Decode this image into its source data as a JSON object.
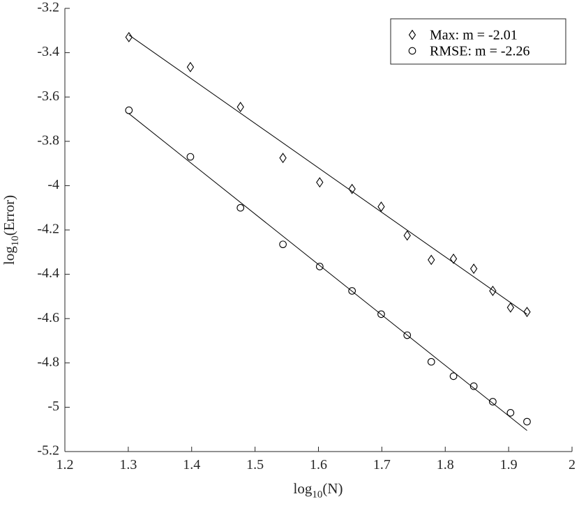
{
  "chart_data": {
    "type": "scatter",
    "xlim": [
      1.2,
      2.0
    ],
    "ylim": [
      -5.2,
      -3.2
    ],
    "x_ticks": [
      1.2,
      1.3,
      1.4,
      1.5,
      1.6,
      1.7,
      1.8,
      1.9,
      2.0
    ],
    "x_tick_labels": [
      "1.2",
      "1.3",
      "1.4",
      "1.5",
      "1.6",
      "1.7",
      "1.8",
      "1.9",
      "2"
    ],
    "y_ticks": [
      -3.2,
      -3.4,
      -3.6,
      -3.8,
      -4.0,
      -4.2,
      -4.4,
      -4.6,
      -4.8,
      -5.0,
      -5.2
    ],
    "y_tick_labels": [
      "-3.2",
      "-3.4",
      "-3.6",
      "-3.8",
      "-4",
      "-4.2",
      "-4.4",
      "-4.6",
      "-4.8",
      "-5",
      "-5.2"
    ],
    "xlabel": {
      "base": "log",
      "sub": "10",
      "rest": "(N)"
    },
    "ylabel": {
      "base": "log",
      "sub": "10",
      "rest": "(Error)"
    },
    "grid": false,
    "legend_position": "top-right",
    "series": [
      {
        "name": "Max: m = -2.01",
        "marker": "diamond",
        "color": "#000000",
        "x": [
          1.301,
          1.398,
          1.477,
          1.544,
          1.602,
          1.653,
          1.699,
          1.74,
          1.778,
          1.813,
          1.845,
          1.875,
          1.903,
          1.929
        ],
        "y": [
          -3.33,
          -3.465,
          -3.645,
          -3.875,
          -3.985,
          -4.015,
          -4.095,
          -4.225,
          -4.335,
          -4.33,
          -4.375,
          -4.475,
          -4.55,
          -4.57
        ],
        "fit": {
          "x": [
            1.301,
            1.929
          ],
          "y": [
            -3.32,
            -4.58
          ]
        }
      },
      {
        "name": "RMSE: m = -2.26",
        "marker": "circle",
        "color": "#000000",
        "x": [
          1.301,
          1.398,
          1.477,
          1.544,
          1.602,
          1.653,
          1.699,
          1.74,
          1.778,
          1.813,
          1.845,
          1.875,
          1.903,
          1.929
        ],
        "y": [
          -3.66,
          -3.87,
          -4.1,
          -4.265,
          -4.365,
          -4.475,
          -4.58,
          -4.675,
          -4.795,
          -4.86,
          -4.905,
          -4.975,
          -5.025,
          -5.065
        ],
        "fit": {
          "x": [
            1.301,
            1.929
          ],
          "y": [
            -3.675,
            -5.105
          ]
        }
      }
    ]
  }
}
